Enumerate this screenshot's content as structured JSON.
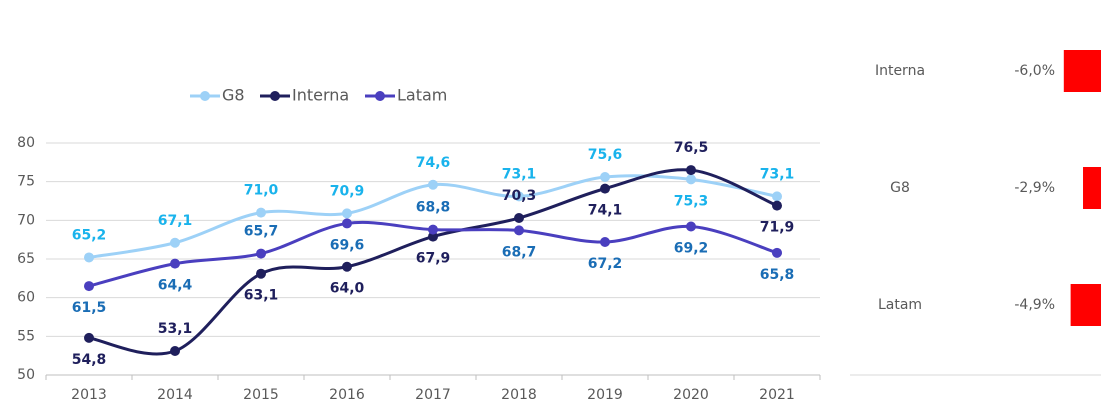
{
  "chart_data": [
    {
      "type": "line",
      "categories": [
        "2013",
        "2014",
        "2015",
        "2016",
        "2017",
        "2018",
        "2019",
        "2020",
        "2021"
      ],
      "series": [
        {
          "name": "G8",
          "color": "#9dd1f7",
          "label_color": "#19b3ec",
          "values": [
            65.2,
            67.1,
            71.0,
            70.9,
            74.6,
            73.1,
            75.6,
            75.3,
            73.1
          ],
          "value_labels": [
            "65,2",
            "67,1",
            "71,0",
            "70,9",
            "74,6",
            "73,1",
            "75,6",
            "75,3",
            "73,1"
          ]
        },
        {
          "name": "Interna",
          "color": "#1f1f5c",
          "label_color": "#1f1f5c",
          "values": [
            54.8,
            53.1,
            63.1,
            64.0,
            67.9,
            70.3,
            74.1,
            76.5,
            71.9
          ],
          "value_labels": [
            "54,8",
            "53,1",
            "63,1",
            "64,0",
            "67,9",
            "70,3",
            "74,1",
            "76,5",
            "71,9"
          ]
        },
        {
          "name": "Latam",
          "color": "#4a3fbf",
          "label_color": "#1a6db5",
          "values": [
            61.5,
            64.4,
            65.7,
            69.6,
            68.8,
            68.7,
            67.2,
            69.2,
            65.8
          ],
          "value_labels": [
            "61,5",
            "64,4",
            "65,7",
            "69,6",
            "68,8",
            "68,7",
            "67,2",
            "69,2",
            "65,8"
          ]
        }
      ],
      "ylim": [
        50,
        80
      ],
      "yticks": [
        50,
        55,
        60,
        65,
        70,
        75,
        80
      ],
      "grid": true,
      "legend": "top"
    },
    {
      "type": "hbar",
      "categories": [
        "Interna",
        "G8",
        "Latam"
      ],
      "values": [
        -6.0,
        -2.9,
        -4.9
      ],
      "value_labels": [
        "-6,0%",
        "-2,9%",
        "-4,9%"
      ],
      "color": "#ff0000"
    }
  ]
}
